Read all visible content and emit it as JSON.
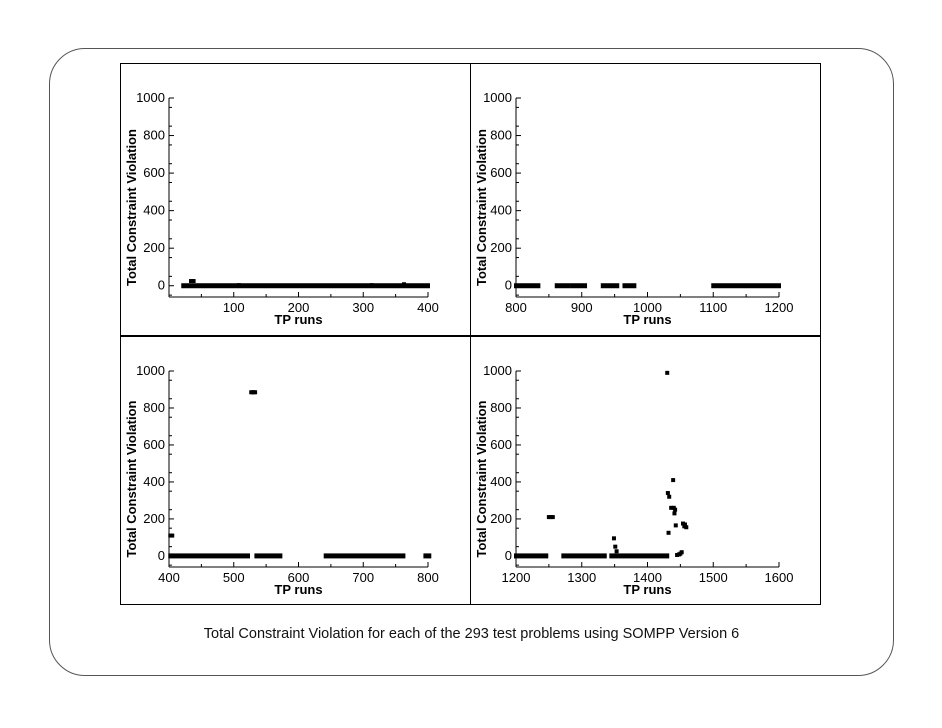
{
  "caption": "Total Constraint Violation for each of the 293 test problems using SOMPP Version 6",
  "chart_data": [
    {
      "type": "scatter",
      "xlabel": "TP runs",
      "ylabel": "Total Constraint Violation",
      "xlim": [
        0,
        400
      ],
      "ylim": [
        -60,
        1000
      ],
      "xticks": [
        100,
        200,
        300,
        400
      ],
      "yticks": [
        0,
        200,
        400,
        600,
        800,
        1000
      ],
      "segments": [
        {
          "from": 22,
          "to": 400,
          "y": 0
        }
      ],
      "points": [
        [
          34,
          25
        ],
        [
          38,
          25
        ],
        [
          108,
          3
        ],
        [
          313,
          3
        ],
        [
          363,
          8
        ]
      ]
    },
    {
      "type": "scatter",
      "xlabel": "TP runs",
      "ylabel": "Total Constraint Violation",
      "xlim": [
        800,
        1200
      ],
      "ylim": [
        -60,
        1000
      ],
      "xticks": [
        800,
        900,
        1000,
        1100,
        1200
      ],
      "yticks": [
        0,
        200,
        400,
        600,
        800,
        1000
      ],
      "segments": [
        {
          "from": 800,
          "to": 834,
          "y": 0
        },
        {
          "from": 862,
          "to": 880,
          "y": 0
        },
        {
          "from": 886,
          "to": 905,
          "y": 0
        },
        {
          "from": 932,
          "to": 954,
          "y": 0
        },
        {
          "from": 965,
          "to": 980,
          "y": 0
        },
        {
          "from": 1100,
          "to": 1200,
          "y": 0
        }
      ],
      "points": []
    },
    {
      "type": "scatter",
      "xlabel": "TP runs",
      "ylabel": "Total Constraint Violation",
      "xlim": [
        400,
        800
      ],
      "ylim": [
        -60,
        1000
      ],
      "xticks": [
        400,
        500,
        600,
        700,
        800
      ],
      "yticks": [
        0,
        200,
        400,
        600,
        800,
        1000
      ],
      "segments": [
        {
          "from": 402,
          "to": 522,
          "y": 0
        },
        {
          "from": 535,
          "to": 572,
          "y": 0
        },
        {
          "from": 642,
          "to": 762,
          "y": 0
        },
        {
          "from": 796,
          "to": 802,
          "y": 0
        }
      ],
      "points": [
        [
          402,
          110
        ],
        [
          405,
          110
        ],
        [
          527,
          885
        ],
        [
          529,
          885
        ],
        [
          531,
          885
        ],
        [
          533,
          885
        ]
      ]
    },
    {
      "type": "scatter",
      "xlabel": "TP runs",
      "ylabel": "Total Constraint Violation",
      "xlim": [
        1200,
        1600
      ],
      "ylim": [
        -60,
        1000
      ],
      "xticks": [
        1200,
        1300,
        1400,
        1500,
        1600
      ],
      "yticks": [
        0,
        200,
        400,
        600,
        800,
        1000
      ],
      "segments": [
        {
          "from": 1200,
          "to": 1246,
          "y": 0
        },
        {
          "from": 1272,
          "to": 1335,
          "y": 0
        },
        {
          "from": 1345,
          "to": 1430,
          "y": 0
        }
      ],
      "points": [
        [
          1250,
          210
        ],
        [
          1253,
          210
        ],
        [
          1256,
          210
        ],
        [
          1349,
          95
        ],
        [
          1351,
          50
        ],
        [
          1353,
          25
        ],
        [
          1430,
          990
        ],
        [
          1431,
          340
        ],
        [
          1433,
          320
        ],
        [
          1432,
          125
        ],
        [
          1436,
          260
        ],
        [
          1439,
          410
        ],
        [
          1440,
          260
        ],
        [
          1442,
          250
        ],
        [
          1441,
          230
        ],
        [
          1443,
          165
        ],
        [
          1445,
          5
        ],
        [
          1448,
          8
        ],
        [
          1450,
          12
        ],
        [
          1452,
          20
        ],
        [
          1454,
          175
        ],
        [
          1456,
          160
        ],
        [
          1457,
          170
        ],
        [
          1459,
          155
        ]
      ]
    }
  ]
}
